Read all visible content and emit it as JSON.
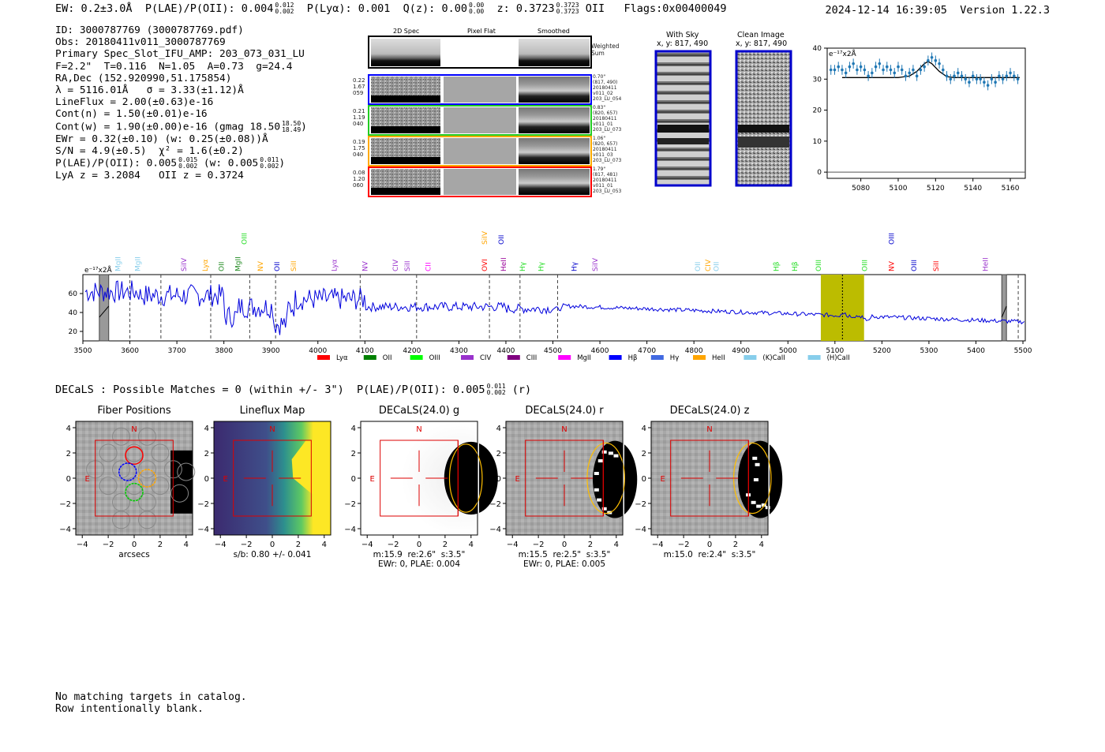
{
  "header": {
    "ew_label": "EW: 0.2±3.0Å",
    "plae_label": "P(LAE)/P(OII): 0.004",
    "plae_hi": "0.012",
    "plae_lo": "0.002",
    "plya_label": "P(Lyα): 0.001",
    "qz_label": "Q(z): 0.00",
    "qz_hi": "0.00",
    "qz_lo": "0.00",
    "z_label": "z: 0.3723",
    "z_hi": "0.3723",
    "z_lo": "0.3723",
    "z_line": "OII",
    "flags": "Flags:0x00400049",
    "timestamp": "2024-12-14 16:39:05",
    "version": "Version 1.22.3"
  },
  "info": {
    "id": "ID: 3000787769 (3000787769.pdf)",
    "obs": "Obs: 20180411v011_3000787769",
    "primary": "Primary Spec_Slot_IFU_AMP: 203_073_031_LU",
    "fit": "F=2.2\"  T=0.116  N=1.05  A=0.73  g=24.4",
    "radec": "RA,Dec (152.920990,51.175854)",
    "lambda": "λ = 5116.01Å   σ = 3.33(±1.12)Å",
    "lineflux": "LineFlux = 2.00(±0.63)e-16",
    "contn": "Cont(n) = 1.50(±0.01)e-16",
    "contw": "Cont(w) = 1.90(±0.00)e-16 (gmag 18.50",
    "gmag_hi": "18.50",
    "gmag_lo": "18.49",
    "ewr": "EWr = 0.32(±0.10) (w: 0.25(±0.08))Å",
    "sn": "S/N = 4.9(±0.5)  χ² = 1.6(±0.2)",
    "plae": "P(LAE)/P(OII): 0.005",
    "plae_hi": "0.015",
    "plae_lo": "0.002",
    "plae_w": "(w: 0.005",
    "plae_w_hi": "0.011",
    "plae_w_lo": "0.002",
    "lyaz": "LyA z = 3.2084   OII z = 0.3724"
  },
  "cutouts": {
    "col_2d": "2D Spec",
    "col_flat": "Pixel Flat",
    "col_smooth": "Smoothed",
    "weighted": "Weighted\nSum",
    "rows": [
      {
        "left": "0.22\n1.67\n059",
        "right": "0.70\"\n(817, 490)\n20180411\nv011_02\n203_LU_054",
        "color": "#0000ff"
      },
      {
        "left": "0.21\n1.19\n040",
        "right": "0.83\"\n(820, 657)\n20180411\nv011_01\n203_LU_073",
        "color": "#22cc22"
      },
      {
        "left": "0.19\n1.75\n040",
        "right": "1.06\"\n(820, 657)\n20180411\nv011_03\n203_LU_073",
        "color": "#ffaa00"
      },
      {
        "left": "0.08\n1.20\n060",
        "right": "1.79\"\n(817, 481)\n20180411\nv011_01\n203_LU_053",
        "color": "#ff0000"
      }
    ]
  },
  "sky_panels": {
    "with_sky_title": "With Sky",
    "with_sky_xy": "x, y: 817, 490",
    "clean_title": "Clean Image",
    "clean_xy": "x, y: 817, 490"
  },
  "zoom_chart": {
    "unit_label": "e⁻¹⁷x2Å",
    "xticks": [
      5080,
      5100,
      5120,
      5140,
      5160
    ],
    "yticks": [
      0,
      10,
      20,
      30,
      40
    ]
  },
  "chart_data": [
    {
      "type": "line",
      "name": "zoom",
      "xlim": [
        5062,
        5168
      ],
      "ylim": [
        -2,
        40
      ],
      "points_x": [
        5064,
        5066,
        5068,
        5070,
        5072,
        5074,
        5076,
        5078,
        5080,
        5082,
        5084,
        5086,
        5088,
        5090,
        5092,
        5094,
        5096,
        5098,
        5100,
        5102,
        5104,
        5106,
        5108,
        5110,
        5112,
        5114,
        5116,
        5118,
        5120,
        5122,
        5124,
        5126,
        5128,
        5130,
        5132,
        5134,
        5136,
        5138,
        5140,
        5142,
        5144,
        5146,
        5148,
        5150,
        5152,
        5154,
        5156,
        5158,
        5160,
        5162,
        5164
      ],
      "points_y": [
        33,
        33,
        34,
        33,
        32,
        34,
        35,
        33,
        34,
        33,
        31,
        32,
        34,
        35,
        33,
        34,
        33,
        32,
        34,
        33,
        31,
        32,
        33,
        31,
        33,
        34,
        36,
        37,
        36,
        35,
        33,
        31,
        30,
        31,
        32,
        31,
        30,
        29,
        31,
        30,
        30,
        29,
        28,
        30,
        29,
        31,
        30,
        31,
        32,
        31,
        30
      ],
      "fit_x": [
        5070,
        5100,
        5106,
        5110,
        5114,
        5116,
        5118,
        5122,
        5126,
        5130,
        5165
      ],
      "fit_y": [
        30.5,
        30.5,
        31,
        32.5,
        35,
        35.7,
        35,
        32.5,
        30.8,
        30.5,
        30.5
      ],
      "baseline_y": 0
    },
    {
      "type": "line",
      "name": "full",
      "xlim": [
        3500,
        5505
      ],
      "ylim": [
        10,
        80
      ],
      "xticks": [
        3500,
        3600,
        3700,
        3800,
        3900,
        4000,
        4100,
        4200,
        4300,
        4400,
        4500,
        4600,
        4700,
        4800,
        4900,
        5000,
        5100,
        5200,
        5300,
        5400,
        5500
      ],
      "yticks": [
        20,
        40,
        60
      ],
      "unit_label": "e⁻¹⁷x2Å",
      "highlight_band": [
        5070,
        5162
      ],
      "highlight_center": 5116,
      "masked_bands": [
        [
          3535,
          3555
        ],
        [
          5455,
          5465
        ]
      ],
      "dashed_lines": [
        3600,
        3666,
        3772,
        3855,
        3910,
        4090,
        4210,
        4365,
        4430,
        4510,
        5490
      ]
    }
  ],
  "emission_labels": [
    {
      "text": "MgII",
      "x": 3575,
      "color": "#87ceeb",
      "row": 1
    },
    {
      "text": "MgII",
      "x": 3617,
      "color": "#87ceeb",
      "row": 1
    },
    {
      "text": "SiIV",
      "x": 3715,
      "color": "#9932cc",
      "row": 1
    },
    {
      "text": "Lyα",
      "x": 3760,
      "color": "#ffa500",
      "row": 1
    },
    {
      "text": "OII",
      "x": 3795,
      "color": "#228b22",
      "row": 1
    },
    {
      "text": "MgII",
      "x": 3830,
      "color": "#228b22",
      "row": 1
    },
    {
      "text": "OIII",
      "x": 3843,
      "color": "#22dd22",
      "row": 0
    },
    {
      "text": "NV",
      "x": 3878,
      "color": "#ffa500",
      "row": 1
    },
    {
      "text": "OII",
      "x": 3913,
      "color": "#0000cc",
      "row": 1
    },
    {
      "text": "SiII",
      "x": 3948,
      "color": "#ffa500",
      "row": 1
    },
    {
      "text": "Lyα",
      "x": 4035,
      "color": "#9932cc",
      "row": 1
    },
    {
      "text": "NV",
      "x": 4100,
      "color": "#9932cc",
      "row": 1
    },
    {
      "text": "CIV",
      "x": 4165,
      "color": "#9932cc",
      "row": 1
    },
    {
      "text": "SiII",
      "x": 4190,
      "color": "#9932cc",
      "row": 1
    },
    {
      "text": "CII",
      "x": 4235,
      "color": "#ff00ff",
      "row": 1
    },
    {
      "text": "SiIV",
      "x": 4355,
      "color": "#ffa500",
      "row": 0
    },
    {
      "text": "OII",
      "x": 4390,
      "color": "#0000cc",
      "row": 0
    },
    {
      "text": "OVI",
      "x": 4355,
      "color": "#ff0000",
      "row": 1
    },
    {
      "text": "HeII",
      "x": 4395,
      "color": "#990099",
      "row": 1
    },
    {
      "text": "Hγ",
      "x": 4435,
      "color": "#22dd22",
      "row": 1
    },
    {
      "text": "Hγ",
      "x": 4475,
      "color": "#22dd22",
      "row": 1
    },
    {
      "text": "Hγ",
      "x": 4545,
      "color": "#0000cc",
      "row": 1
    },
    {
      "text": "SiIV",
      "x": 4590,
      "color": "#9932cc",
      "row": 1
    },
    {
      "text": "OII",
      "x": 4808,
      "color": "#87ceeb",
      "row": 1
    },
    {
      "text": "CIV",
      "x": 4830,
      "color": "#ffa500",
      "row": 1
    },
    {
      "text": "OII",
      "x": 4848,
      "color": "#87ceeb",
      "row": 1
    },
    {
      "text": "Hβ",
      "x": 4975,
      "color": "#22dd22",
      "row": 1
    },
    {
      "text": "Hβ",
      "x": 5015,
      "color": "#22dd22",
      "row": 1
    },
    {
      "text": "OIII",
      "x": 5065,
      "color": "#22dd22",
      "row": 1
    },
    {
      "text": "OIII",
      "x": 5163,
      "color": "#22dd22",
      "row": 1
    },
    {
      "text": "OIII",
      "x": 5220,
      "color": "#0000cc",
      "row": 0
    },
    {
      "text": "NV",
      "x": 5220,
      "color": "#ff0000",
      "row": 1
    },
    {
      "text": "OIII",
      "x": 5268,
      "color": "#0000cc",
      "row": 1
    },
    {
      "text": "SiII",
      "x": 5315,
      "color": "#ff0000",
      "row": 1
    },
    {
      "text": "HeII",
      "x": 5420,
      "color": "#9932cc",
      "row": 1
    }
  ],
  "legend": [
    {
      "label": "Lyα",
      "color": "#ff0000"
    },
    {
      "label": "OII",
      "color": "#008000"
    },
    {
      "label": "OIII",
      "color": "#00ff00"
    },
    {
      "label": "CIV",
      "color": "#9932cc"
    },
    {
      "label": "CIII",
      "color": "#800080"
    },
    {
      "label": "MgII",
      "color": "#ff00ff"
    },
    {
      "label": "Hβ",
      "color": "#0000ff"
    },
    {
      "label": "Hγ",
      "color": "#4169e1"
    },
    {
      "label": "HeII",
      "color": "#ffa500"
    },
    {
      "label": "(K)CaII",
      "color": "#87ceeb"
    },
    {
      "label": "(H)CaII",
      "color": "#87ceeb"
    }
  ],
  "decals": {
    "summary": "DECaLS : Possible Matches = 0 (within +/- 3\")  P(LAE)/P(OII): 0.005",
    "summary_hi": "0.011",
    "summary_lo": "0.002",
    "summary_tail": "(r)",
    "ticks": [
      -4,
      -2,
      0,
      2,
      4
    ],
    "panels": [
      {
        "title": "Fiber Positions",
        "caption": "arcsecs"
      },
      {
        "title": "Lineflux Map",
        "caption": "s/b: 0.80 +/- 0.041"
      },
      {
        "title": "DECaLS(24.0) g",
        "caption": "m:15.9  re:2.6\"  s:3.5\"\nEWr: 0, PLAE: 0.004"
      },
      {
        "title": "DECaLS(24.0) r",
        "caption": "m:15.5  re:2.5\"  s:3.5\"\nEWr: 0, PLAE: 0.005"
      },
      {
        "title": "DECaLS(24.0) z",
        "caption": "m:15.0  re:2.4\"  s:3.5\""
      }
    ],
    "north": "N",
    "east": "E"
  },
  "catalog": {
    "line1": "No matching targets in catalog.",
    "line2": "Row intentionally blank."
  }
}
